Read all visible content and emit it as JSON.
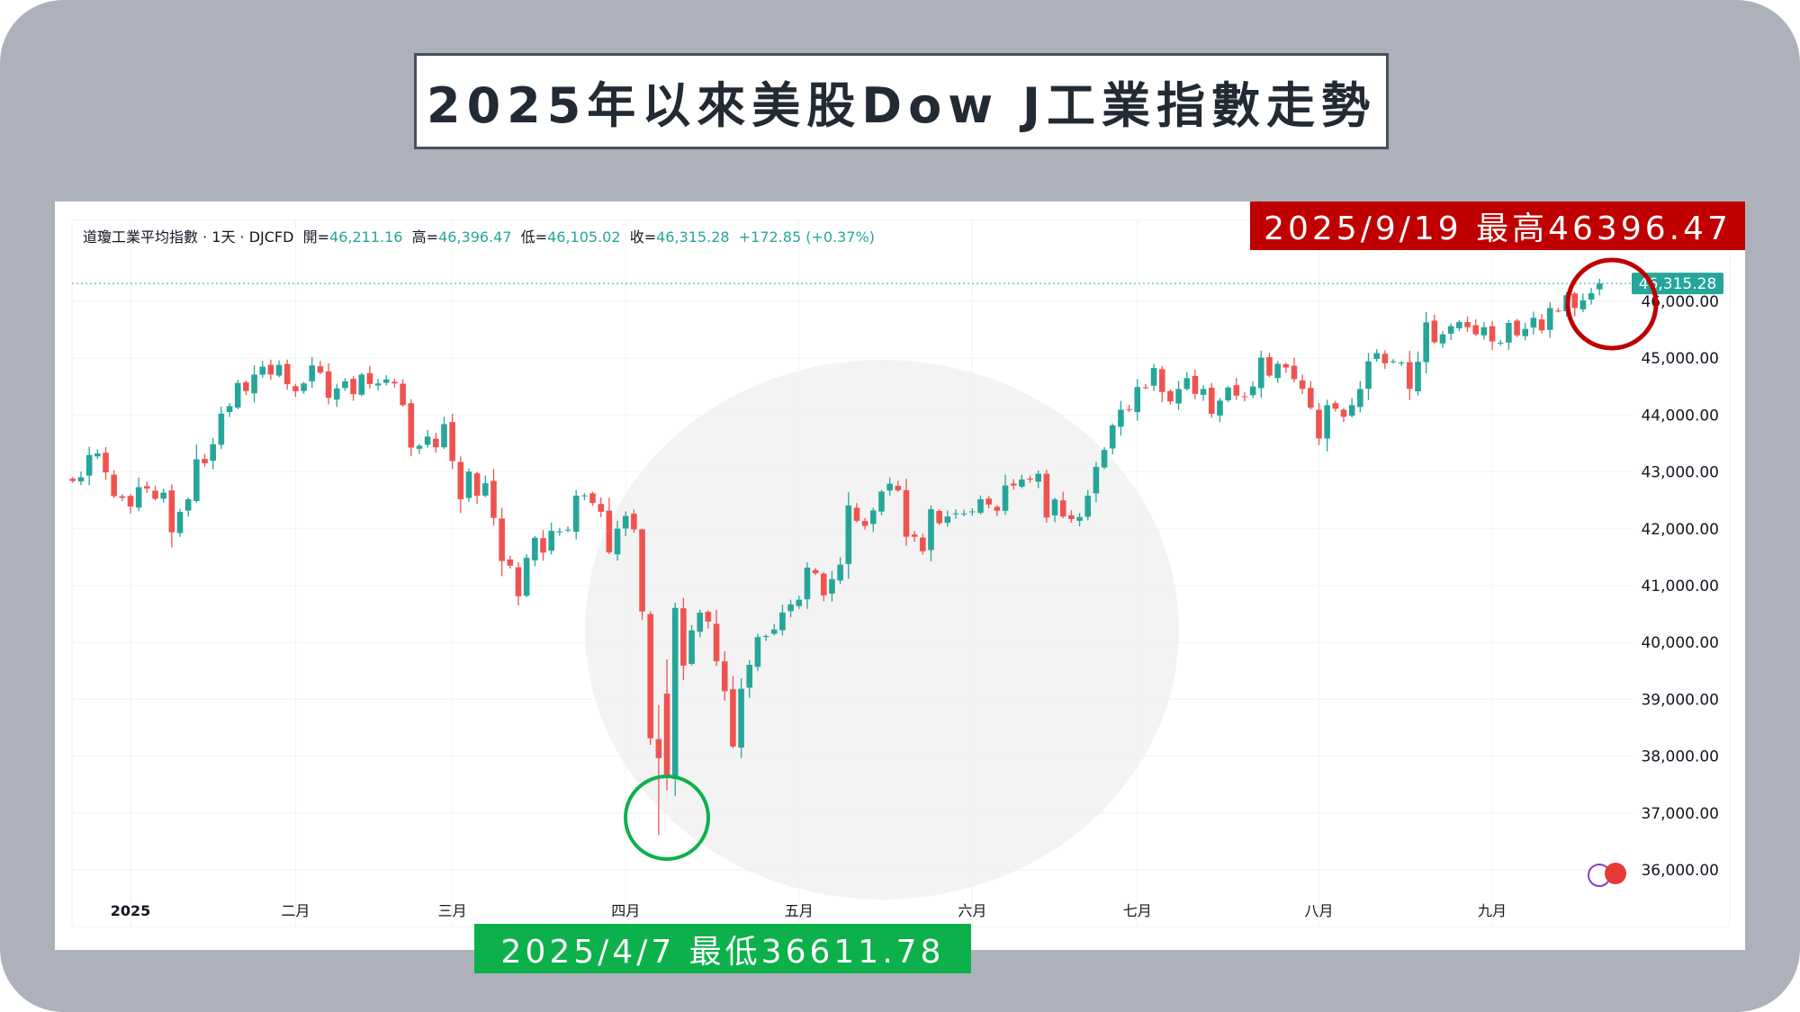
{
  "title": "2025年以來美股Dow J工業指數走勢",
  "legend": {
    "symbol": "道瓊工業平均指數 · 1天 · DJCFD",
    "open_label": "開=",
    "open": "46,211.16",
    "high_label": "高=",
    "high": "46,396.47",
    "low_label": "低=",
    "low": "46,105.02",
    "close_label": "收=",
    "close": "46,315.28",
    "change": "+172.85 (+0.37%)"
  },
  "annotations": {
    "high": "2025/9/19 最高46396.47",
    "low": "2025/4/7 最低36611.78",
    "high_color": "#c00000",
    "low_color": "#0db14b"
  },
  "colors": {
    "up": "#26a69a",
    "down": "#ef5350",
    "frame": "#adb1bb"
  },
  "chart_data": {
    "type": "candlestick",
    "title": "",
    "last_price": 46315.28,
    "last_price_label": "46,315.28",
    "ylim": [
      35700,
      46700
    ],
    "yticks": [
      "36,000.00",
      "37,000.00",
      "38,000.00",
      "39,000.00",
      "40,000.00",
      "41,000.00",
      "42,000.00",
      "43,000.00",
      "44,000.00",
      "45,000.00",
      "46,000.00"
    ],
    "ytick_values": [
      36000,
      37000,
      38000,
      39000,
      40000,
      41000,
      42000,
      43000,
      44000,
      45000,
      46000
    ],
    "xticks": [
      {
        "label": "2025",
        "index": 7
      },
      {
        "label": "二月",
        "index": 27
      },
      {
        "label": "三月",
        "index": 46
      },
      {
        "label": "四月",
        "index": 67
      },
      {
        "label": "五月",
        "index": 88
      },
      {
        "label": "六月",
        "index": 109
      },
      {
        "label": "七月",
        "index": 129
      },
      {
        "label": "八月",
        "index": 151
      },
      {
        "label": "九月",
        "index": 172
      }
    ],
    "grid": true,
    "closes": [
      42840,
      42906,
      43297,
      43325,
      42992,
      42574,
      42544,
      42392,
      42732,
      42706,
      42528,
      42635,
      41938,
      42297,
      42518,
      43221,
      43153,
      43487,
      44025,
      44156,
      44565,
      44424,
      44713,
      44850,
      44714,
      44882,
      44544,
      44421,
      44556,
      44873,
      44747,
      44303,
      44470,
      44593,
      44368,
      44711,
      44546,
      44556,
      44627,
      44556,
      44176,
      43428,
      43461,
      43621,
      43433,
      43840,
      43191,
      42520,
      43006,
      42579,
      42801,
      42191,
      41433,
      41350,
      40813,
      41488,
      41841,
      41581,
      41964,
      41953,
      41985,
      42583,
      42587,
      42454,
      42299,
      41583,
      42001,
      42225,
      41989,
      40545,
      38315,
      37965,
      37646,
      40608,
      39593,
      40212,
      40524,
      40368,
      39669,
      39142,
      38170,
      39186,
      39606,
      40093,
      40113,
      40227,
      40527,
      40669,
      40752,
      41317,
      41218,
      40829,
      41113,
      41368,
      42410,
      42140,
      42051,
      42322,
      42654,
      42792,
      42677,
      41860,
      41859,
      41603,
      42343,
      42098,
      42215,
      42270,
      42270,
      42305,
      42519,
      42427,
      42319,
      42762,
      42761,
      42866,
      42865,
      42967,
      42197,
      42515,
      42215,
      42171,
      42206,
      42581,
      43089,
      43386,
      43819,
      44094,
      44094,
      44494,
      44484,
      44828,
      44406,
      44240,
      44458,
      44650,
      44372,
      44459,
      44023,
      44254,
      44484,
      44342,
      44323,
      44502,
      45010,
      44694,
      44901,
      44837,
      44632,
      44461,
      44130,
      43589,
      44173,
      44111,
      43969,
      44175,
      44459,
      44946,
      45090,
      44911,
      44946,
      44922,
      44461,
      44938,
      45631,
      45282,
      45418,
      45565,
      45637,
      45545,
      45420,
      45545,
      45295,
      45272,
      45621,
      45401,
      45515,
      45711,
      45490,
      45883,
      45834,
      46108,
      45884,
      46018,
      46142,
      46315.28
    ],
    "ohlc_overrides": [
      {
        "index": 69,
        "o": 41990,
        "h": 42000,
        "l": 40400,
        "c": 40545
      },
      {
        "index": 70,
        "o": 40500,
        "h": 40550,
        "l": 38200,
        "c": 38315
      },
      {
        "index": 71,
        "o": 38300,
        "h": 38900,
        "l": 36611.78,
        "c": 37965
      },
      {
        "index": 72,
        "o": 39100,
        "h": 39700,
        "l": 37400,
        "c": 37646
      },
      {
        "index": 73,
        "o": 37600,
        "h": 40700,
        "l": 37300,
        "c": 40608
      },
      {
        "index": 185,
        "o": 46211.16,
        "h": 46396.47,
        "l": 46105.02,
        "c": 46315.28
      }
    ]
  }
}
